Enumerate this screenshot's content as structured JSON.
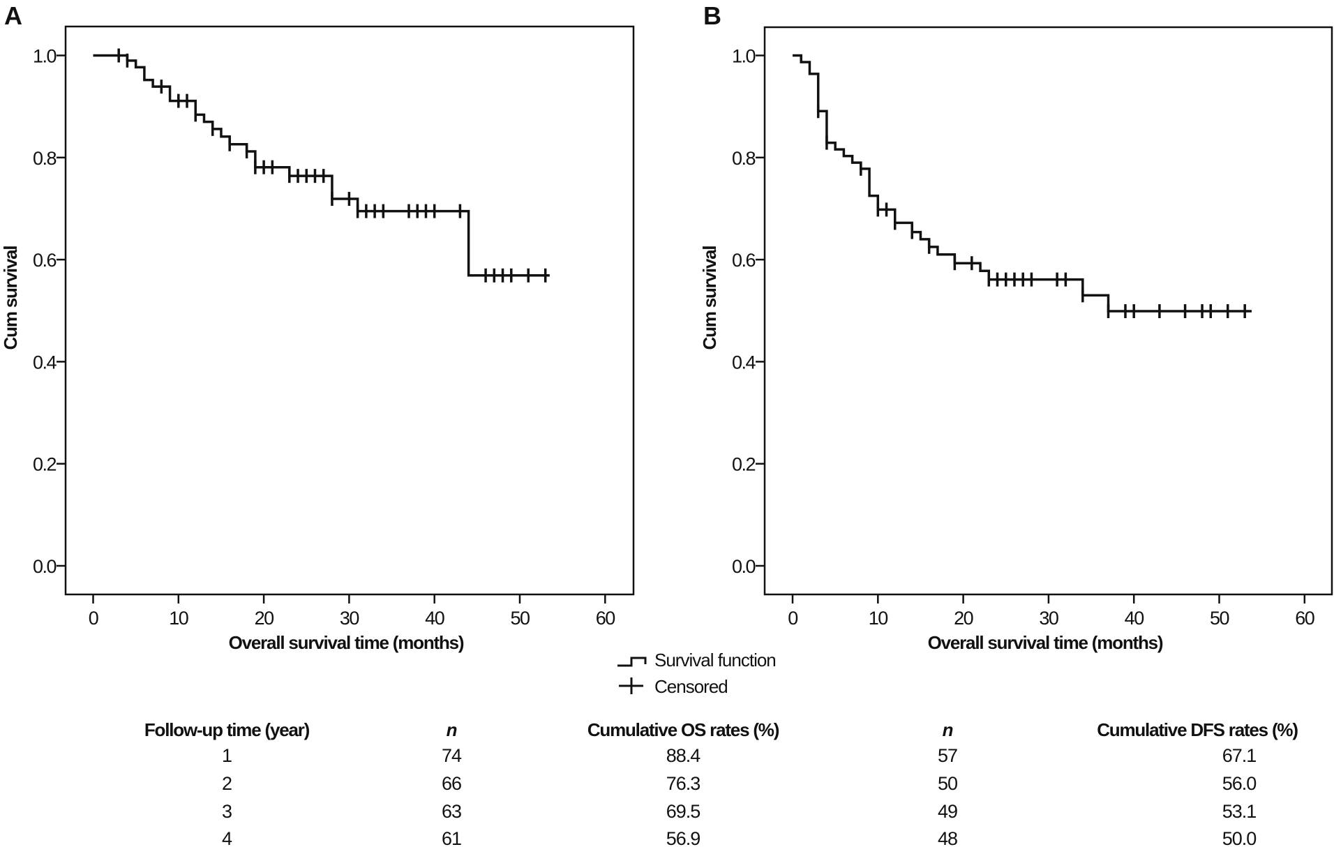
{
  "chart_data": [
    {
      "type": "line",
      "subtype": "kaplan-meier",
      "panel_label": "A",
      "title": "",
      "xlabel": "Overall survival time (months)",
      "ylabel": "Cum survival",
      "xlim": [
        0,
        60
      ],
      "ylim": [
        0.0,
        1.0
      ],
      "xticks": [
        "0",
        "10",
        "20",
        "30",
        "40",
        "50",
        "60"
      ],
      "xtick_values": [
        0,
        10,
        20,
        30,
        40,
        50,
        60
      ],
      "yticks": [
        "0.0",
        "0.2",
        "0.4",
        "0.6",
        "0.8",
        "1.0"
      ],
      "ytick_values": [
        0.0,
        0.2,
        0.4,
        0.6,
        0.8,
        1.0
      ],
      "grid": false,
      "series": [
        {
          "name": "Survival function",
          "start": {
            "x": 0,
            "y": 1.0
          },
          "steps": [
            {
              "x": 4,
              "y": 0.99
            },
            {
              "x": 5,
              "y": 0.977
            },
            {
              "x": 6,
              "y": 0.952
            },
            {
              "x": 7,
              "y": 0.939
            },
            {
              "x": 9,
              "y": 0.911
            },
            {
              "x": 12,
              "y": 0.884
            },
            {
              "x": 13,
              "y": 0.87
            },
            {
              "x": 14,
              "y": 0.856
            },
            {
              "x": 15,
              "y": 0.841
            },
            {
              "x": 16,
              "y": 0.826
            },
            {
              "x": 18,
              "y": 0.812
            },
            {
              "x": 19,
              "y": 0.781
            },
            {
              "x": 23,
              "y": 0.764
            },
            {
              "x": 28,
              "y": 0.719
            },
            {
              "x": 31,
              "y": 0.695
            },
            {
              "x": 44,
              "y": 0.569
            }
          ],
          "end_x": 53.5
        },
        {
          "name": "Censored",
          "x": [
            3,
            4,
            8,
            10,
            11,
            12,
            14,
            16,
            18,
            19,
            20,
            21,
            23,
            24,
            25,
            26,
            27,
            28,
            30,
            31,
            32,
            33,
            34,
            37,
            38,
            39,
            40,
            43,
            46,
            47,
            48,
            49,
            51,
            53
          ]
        }
      ]
    },
    {
      "type": "line",
      "subtype": "kaplan-meier",
      "panel_label": "B",
      "title": "",
      "xlabel": "Overall survival time (months)",
      "ylabel": "Cum survival",
      "xlim": [
        0,
        60
      ],
      "ylim": [
        0.0,
        1.0
      ],
      "xticks": [
        "0",
        "10",
        "20",
        "30",
        "40",
        "50",
        "60"
      ],
      "xtick_values": [
        0,
        10,
        20,
        30,
        40,
        50,
        60
      ],
      "yticks": [
        "0.0",
        "0.2",
        "0.4",
        "0.6",
        "0.8",
        "1.0"
      ],
      "ytick_values": [
        0.0,
        0.2,
        0.4,
        0.6,
        0.8,
        1.0
      ],
      "grid": false,
      "series": [
        {
          "name": "Survival function",
          "start": {
            "x": 0,
            "y": 1.0
          },
          "steps": [
            {
              "x": 1,
              "y": 0.987
            },
            {
              "x": 2,
              "y": 0.964
            },
            {
              "x": 3,
              "y": 0.891
            },
            {
              "x": 4,
              "y": 0.829
            },
            {
              "x": 5,
              "y": 0.816
            },
            {
              "x": 6,
              "y": 0.803
            },
            {
              "x": 7,
              "y": 0.79
            },
            {
              "x": 8,
              "y": 0.778
            },
            {
              "x": 9,
              "y": 0.725
            },
            {
              "x": 10,
              "y": 0.698
            },
            {
              "x": 12,
              "y": 0.672
            },
            {
              "x": 14,
              "y": 0.654
            },
            {
              "x": 15,
              "y": 0.64
            },
            {
              "x": 16,
              "y": 0.625
            },
            {
              "x": 17,
              "y": 0.61
            },
            {
              "x": 19,
              "y": 0.593
            },
            {
              "x": 22,
              "y": 0.578
            },
            {
              "x": 23,
              "y": 0.561
            },
            {
              "x": 34,
              "y": 0.53
            },
            {
              "x": 37,
              "y": 0.499
            }
          ],
          "end_x": 53.8
        },
        {
          "name": "Censored",
          "x": [
            3,
            4,
            8,
            10,
            11,
            12,
            14,
            16,
            19,
            21,
            23,
            24,
            25,
            26,
            27,
            28,
            31,
            32,
            34,
            37,
            39,
            40,
            43,
            46,
            48,
            49,
            51,
            53
          ]
        }
      ]
    }
  ],
  "legend": {
    "position": "bottom-center",
    "items": [
      {
        "symbol": "step-line",
        "label": "Survival function"
      },
      {
        "symbol": "plus",
        "label": "Censored"
      }
    ]
  },
  "table": {
    "headers": [
      "Follow-up time (year)",
      "n",
      "Cumulative OS rates (%)",
      "n",
      "Cumulative DFS rates (%)"
    ],
    "rows": [
      [
        "1",
        "74",
        "88.4",
        "57",
        "67.1"
      ],
      [
        "2",
        "66",
        "76.3",
        "50",
        "56.0"
      ],
      [
        "3",
        "63",
        "69.5",
        "49",
        "53.1"
      ],
      [
        "4",
        "61",
        "56.9",
        "48",
        "50.0"
      ]
    ]
  }
}
